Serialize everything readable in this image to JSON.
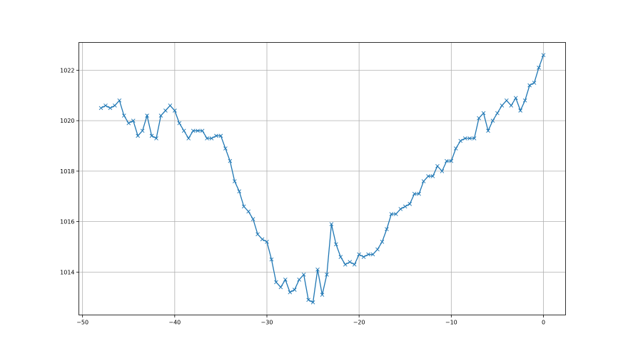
{
  "chart_data": {
    "type": "line",
    "title": "",
    "xlabel": "",
    "ylabel": "",
    "xlim": [
      -50.4,
      2.4
    ],
    "ylim": [
      1012.3,
      1023.1
    ],
    "xticks": [
      -50,
      -40,
      -30,
      -20,
      -10,
      0
    ],
    "yticks": [
      1014,
      1016,
      1018,
      1020,
      1022
    ],
    "grid": true,
    "marker": "x",
    "color": "#1f77b4",
    "series": [
      {
        "x": [
          -48,
          -47.5,
          -47,
          -46.5,
          -46,
          -45.5,
          -45,
          -44.5,
          -44,
          -43.5,
          -43,
          -42.5,
          -42,
          -41.5,
          -41,
          -40.5,
          -40,
          -39.5,
          -39,
          -38.5,
          -38,
          -37.5,
          -37,
          -36.5,
          -36,
          -35.5,
          -35,
          -34.5,
          -34,
          -33.5,
          -33,
          -32.5,
          -32,
          -31.5,
          -31,
          -30.5,
          -30,
          -29.5,
          -29,
          -28.5,
          -28,
          -27.5,
          -27,
          -26.5,
          -26,
          -25.5,
          -25,
          -24.5,
          -24,
          -23.5,
          -23,
          -22.5,
          -22,
          -21.5,
          -21,
          -20.5,
          -20,
          -19.5,
          -19,
          -18.5,
          -18,
          -17.5,
          -17,
          -16.5,
          -16,
          -15.5,
          -15,
          -14.5,
          -14,
          -13.5,
          -13,
          -12.5,
          -12,
          -11.5,
          -11,
          -10.5,
          -10,
          -9.5,
          -9,
          -8.5,
          -8,
          -7.5,
          -7,
          -6.5,
          -6,
          -5.5,
          -5,
          -4.5,
          -4,
          -3.5,
          -3,
          -2.5,
          -2,
          -1.5,
          -1,
          -0.5,
          0
        ],
        "y": [
          1020.5,
          1020.6,
          1020.5,
          1020.6,
          1020.8,
          1020.2,
          1019.9,
          1020.0,
          1019.4,
          1019.6,
          1020.2,
          1019.4,
          1019.3,
          1020.2,
          1020.4,
          1020.6,
          1020.4,
          1019.9,
          1019.6,
          1019.3,
          1019.6,
          1019.6,
          1019.6,
          1019.3,
          1019.3,
          1019.4,
          1019.4,
          1018.9,
          1018.4,
          1017.6,
          1017.2,
          1016.6,
          1016.4,
          1016.1,
          1015.5,
          1015.3,
          1015.2,
          1014.5,
          1013.6,
          1013.4,
          1013.7,
          1013.2,
          1013.3,
          1013.7,
          1013.9,
          1012.9,
          1012.8,
          1014.1,
          1013.1,
          1013.9,
          1015.9,
          1015.1,
          1014.6,
          1014.3,
          1014.4,
          1014.3,
          1014.7,
          1014.6,
          1014.7,
          1014.7,
          1014.9,
          1015.2,
          1015.7,
          1016.3,
          1016.3,
          1016.5,
          1016.6,
          1016.7,
          1017.1,
          1017.1,
          1017.6,
          1017.8,
          1017.8,
          1018.2,
          1018.0,
          1018.4,
          1018.4,
          1018.9,
          1019.2,
          1019.3,
          1019.3,
          1019.3,
          1020.1,
          1020.3,
          1019.6,
          1020.0,
          1020.3,
          1020.6,
          1020.8,
          1020.6,
          1020.9,
          1020.4,
          1020.8,
          1021.4,
          1021.5,
          1022.1,
          1022.6
        ]
      }
    ]
  }
}
